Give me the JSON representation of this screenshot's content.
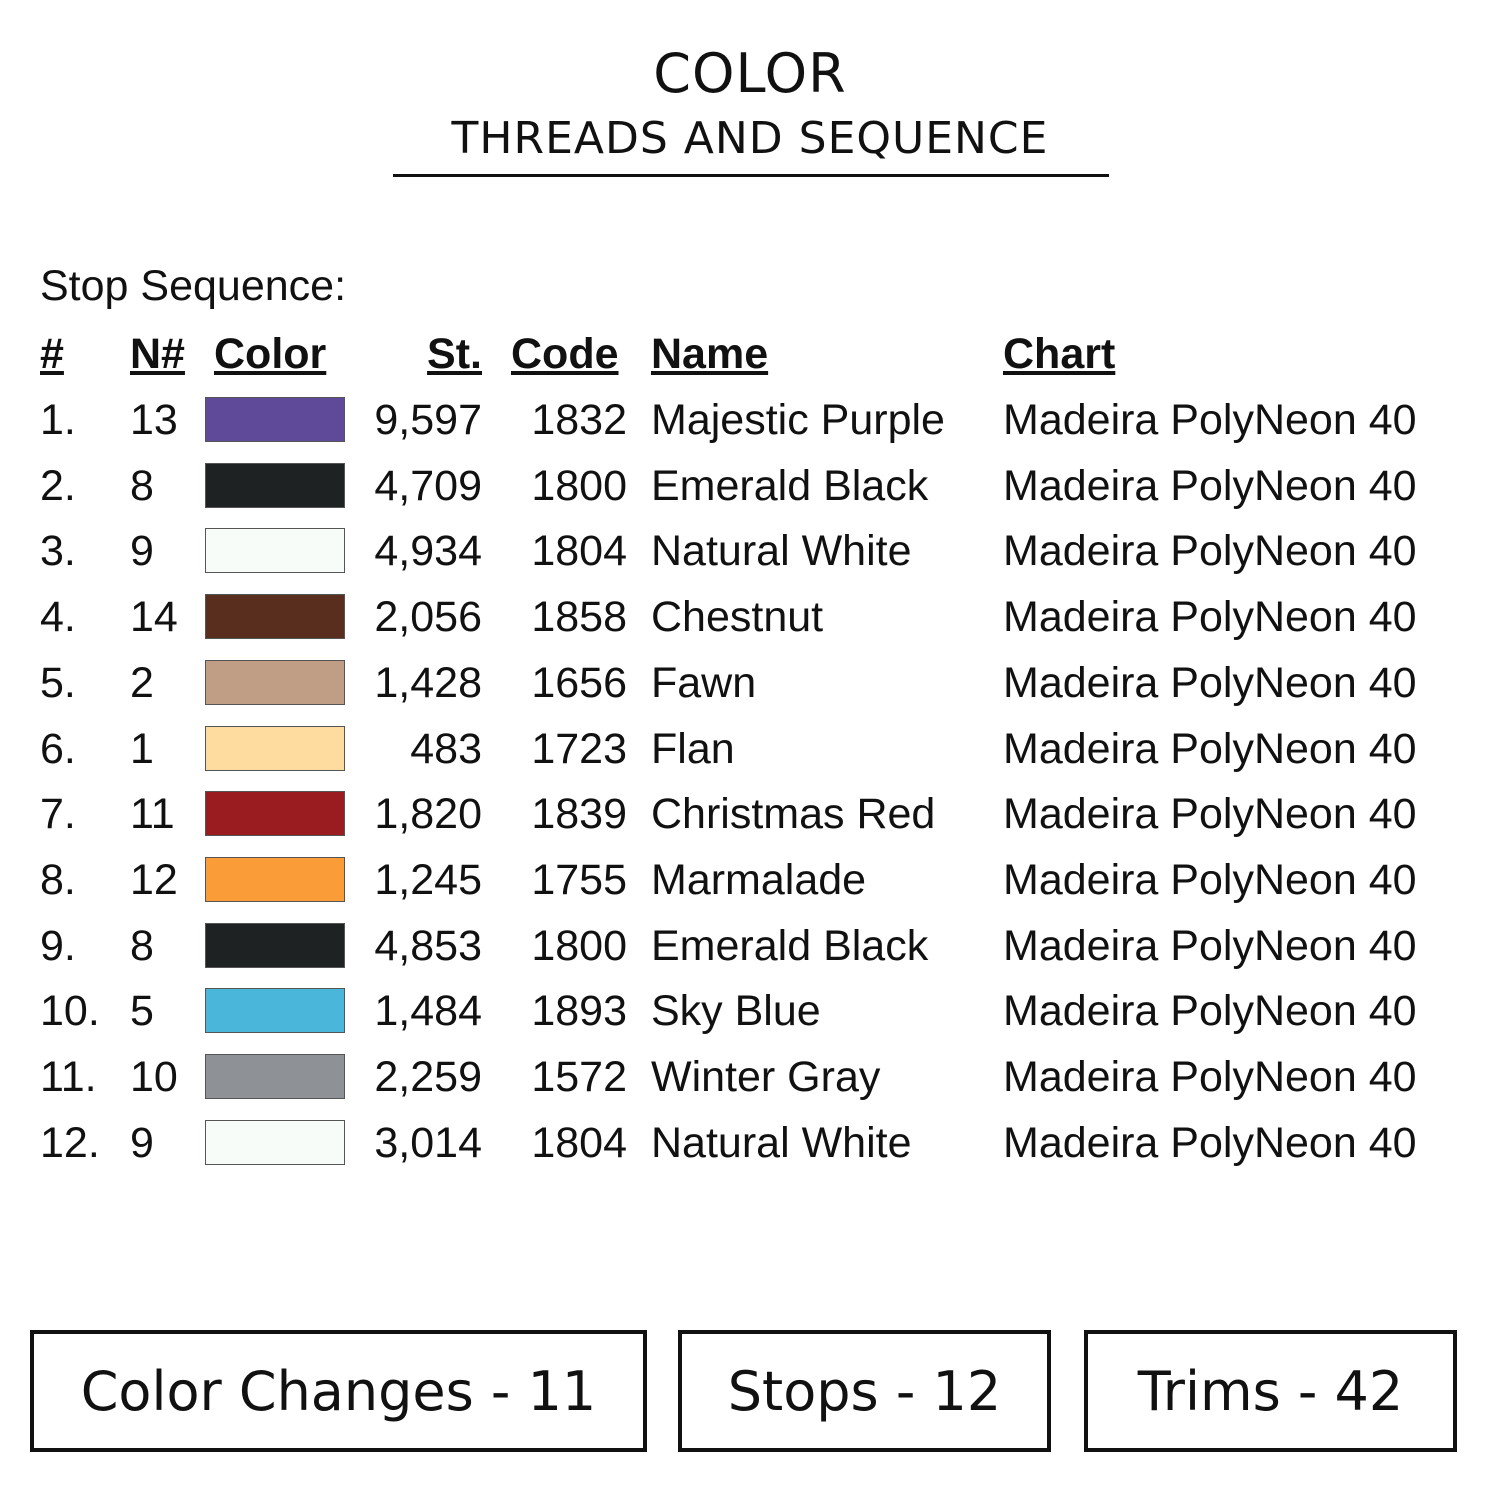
{
  "header": {
    "title": "COLOR",
    "subtitle": "THREADS AND SEQUENCE"
  },
  "section_label": "Stop Sequence:",
  "columns": {
    "num": "#",
    "needle": "N#",
    "color": "Color",
    "stitches": "St.",
    "code": "Code",
    "name": "Name",
    "chart": "Chart"
  },
  "rows": [
    {
      "num": "1.",
      "needle": "13",
      "color": "#5e4a98",
      "stitches": "9,597",
      "code": "1832",
      "name": "Majestic Purple",
      "chart": "Madeira PolyNeon 40"
    },
    {
      "num": "2.",
      "needle": "8",
      "color": "#1f2222",
      "stitches": "4,709",
      "code": "1800",
      "name": "Emerald Black",
      "chart": "Madeira PolyNeon 40"
    },
    {
      "num": "3.",
      "needle": "9",
      "color": "#f8fcf9",
      "stitches": "4,934",
      "code": "1804",
      "name": "Natural White",
      "chart": "Madeira PolyNeon 40"
    },
    {
      "num": "4.",
      "needle": "14",
      "color": "#5a2e1f",
      "stitches": "2,056",
      "code": "1858",
      "name": "Chestnut",
      "chart": "Madeira PolyNeon 40"
    },
    {
      "num": "5.",
      "needle": "2",
      "color": "#c09e86",
      "stitches": "1,428",
      "code": "1656",
      "name": "Fawn",
      "chart": "Madeira PolyNeon 40"
    },
    {
      "num": "6.",
      "needle": "1",
      "color": "#fedb9f",
      "stitches": "483",
      "code": "1723",
      "name": "Flan",
      "chart": "Madeira PolyNeon 40"
    },
    {
      "num": "7.",
      "needle": "11",
      "color": "#9a1b20",
      "stitches": "1,820",
      "code": "1839",
      "name": "Christmas Red",
      "chart": "Madeira PolyNeon 40"
    },
    {
      "num": "8.",
      "needle": "12",
      "color": "#fa9c38",
      "stitches": "1,245",
      "code": "1755",
      "name": "Marmalade",
      "chart": "Madeira PolyNeon 40"
    },
    {
      "num": "9.",
      "needle": "8",
      "color": "#1f2222",
      "stitches": "4,853",
      "code": "1800",
      "name": "Emerald Black",
      "chart": "Madeira PolyNeon 40"
    },
    {
      "num": "10.",
      "needle": "5",
      "color": "#4ab6da",
      "stitches": "1,484",
      "code": "1893",
      "name": "Sky Blue",
      "chart": "Madeira PolyNeon 40"
    },
    {
      "num": "11.",
      "needle": "10",
      "color": "#8e9196",
      "stitches": "2,259",
      "code": "1572",
      "name": "Winter Gray",
      "chart": "Madeira PolyNeon 40"
    },
    {
      "num": "12.",
      "needle": "9",
      "color": "#f8fcf9",
      "stitches": "3,014",
      "code": "1804",
      "name": "Natural White",
      "chart": "Madeira PolyNeon 40"
    }
  ],
  "summary": {
    "color_changes": "Color Changes - 11",
    "stops": "Stops - 12",
    "trims": "Trims - 42"
  }
}
